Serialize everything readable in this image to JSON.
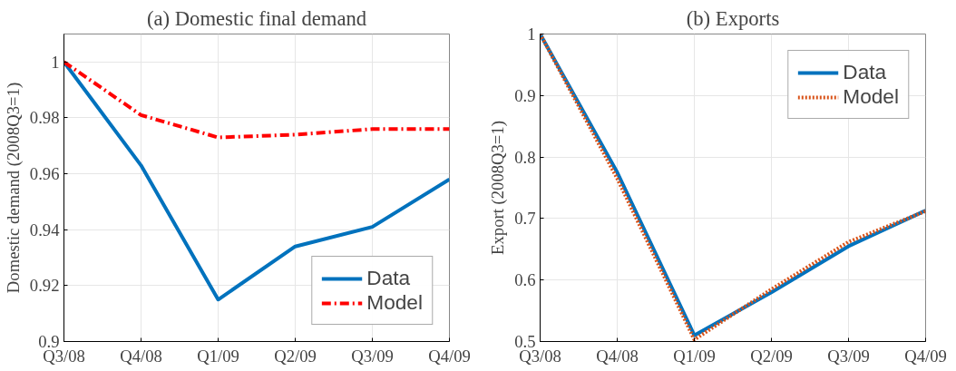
{
  "chart_data": [
    {
      "type": "line",
      "title": "(a) Domestic final demand",
      "ylabel": "Domestic demand (2008Q3=1)",
      "categories": [
        "Q3/08",
        "Q4/08",
        "Q1/09",
        "Q2/09",
        "Q3/09",
        "Q4/09"
      ],
      "ylim": [
        0.9,
        1.01
      ],
      "yticks": [
        0.9,
        0.92,
        0.94,
        0.96,
        0.98,
        1
      ],
      "grid": true,
      "legend": "bottom right",
      "series": [
        {
          "name": "Data",
          "color": "#0072bd",
          "line_style": "solid",
          "values": [
            1,
            0.963,
            0.915,
            0.934,
            0.941,
            0.958
          ]
        },
        {
          "name": "Model",
          "color": "#ff0000",
          "line_style": "dashdot",
          "values": [
            1,
            0.981,
            0.973,
            0.974,
            0.976,
            0.976
          ]
        }
      ]
    },
    {
      "type": "line",
      "title": "(b) Exports",
      "ylabel": "Export (2008Q3=1)",
      "categories": [
        "Q3/08",
        "Q4/08",
        "Q1/09",
        "Q2/09",
        "Q3/09",
        "Q4/09"
      ],
      "ylim": [
        0.5,
        1
      ],
      "yticks": [
        0.5,
        0.6,
        0.7,
        0.8,
        0.9,
        1
      ],
      "grid": true,
      "legend": "top right",
      "series": [
        {
          "name": "Data",
          "color": "#0072bd",
          "line_style": "solid",
          "values": [
            1,
            0.775,
            0.51,
            0.58,
            0.655,
            0.713
          ]
        },
        {
          "name": "Model",
          "color": "#d95319",
          "line_style": "dotted",
          "values": [
            1,
            0.765,
            0.503,
            0.585,
            0.662,
            0.712
          ]
        }
      ]
    }
  ]
}
